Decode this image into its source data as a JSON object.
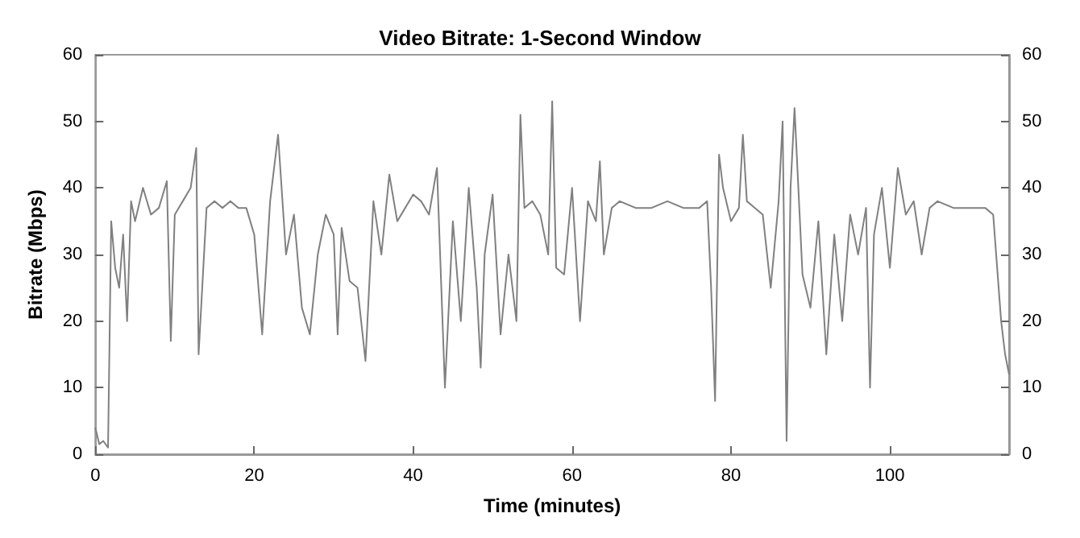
{
  "chart_data": {
    "type": "line",
    "title": "Video Bitrate: 1-Second Window",
    "xlabel": "Time (minutes)",
    "ylabel": "Bitrate (Mbps)",
    "xlim": [
      0,
      115
    ],
    "xticks": [
      0,
      20,
      40,
      60,
      80,
      100
    ],
    "ylim": [
      0,
      60
    ],
    "yticks": [
      0,
      10,
      20,
      30,
      40,
      50,
      60
    ],
    "y2lim": [
      0,
      60
    ],
    "y2ticks": [
      0,
      10,
      20,
      30,
      40,
      50,
      60
    ],
    "grid": false,
    "marker": "none",
    "line_style": "solid",
    "series": [
      {
        "color": "#808080",
        "x": [
          0,
          0.5,
          1,
          1.6,
          2,
          2.5,
          3,
          3.5,
          4,
          4.5,
          5,
          6,
          7,
          8,
          9,
          9.5,
          10,
          11,
          12,
          12.7,
          13,
          14,
          15,
          16,
          17,
          18,
          19,
          20,
          21,
          22,
          23,
          24,
          25,
          26,
          27,
          28,
          29,
          30,
          30.5,
          31,
          32,
          33,
          34,
          35,
          36,
          37,
          38,
          39,
          40,
          41,
          42,
          43,
          44,
          45,
          46,
          47,
          48,
          48.5,
          49,
          50,
          51,
          52,
          53,
          53.5,
          54,
          55,
          56,
          57,
          57.5,
          58,
          59,
          60,
          61,
          62,
          63,
          63.5,
          64,
          65,
          66,
          68,
          70,
          72,
          74,
          76,
          77,
          77.5,
          78,
          78.5,
          79,
          80,
          81,
          81.5,
          82,
          84,
          85,
          86,
          86.5,
          87,
          87.5,
          88,
          89,
          90,
          91,
          92,
          93,
          94,
          95,
          96,
          97,
          97.5,
          98,
          99,
          100,
          101,
          102,
          103,
          104,
          105,
          106,
          108,
          110,
          112,
          113,
          114,
          114.5,
          115
        ],
        "values": [
          4,
          1.5,
          2,
          1,
          35,
          28,
          25,
          33,
          20,
          38,
          35,
          40,
          36,
          37,
          41,
          17,
          36,
          38,
          40,
          46,
          15,
          37,
          38,
          37,
          38,
          37,
          37,
          33,
          18,
          38,
          48,
          30,
          36,
          22,
          18,
          30,
          36,
          33,
          18,
          34,
          26,
          25,
          14,
          38,
          30,
          42,
          35,
          37,
          39,
          38,
          36,
          43,
          10,
          35,
          20,
          40,
          25,
          13,
          30,
          39,
          18,
          30,
          20,
          51,
          37,
          38,
          36,
          30,
          53,
          28,
          27,
          40,
          20,
          38,
          35,
          44,
          30,
          37,
          38,
          37,
          37,
          38,
          37,
          37,
          38,
          25,
          8,
          45,
          40,
          35,
          37,
          48,
          38,
          36,
          25,
          38,
          50,
          2,
          40,
          52,
          27,
          22,
          35,
          15,
          33,
          20,
          36,
          30,
          37,
          10,
          33,
          40,
          28,
          43,
          36,
          38,
          30,
          37,
          38,
          37,
          37,
          37,
          36,
          20,
          15,
          12
        ]
      }
    ]
  }
}
